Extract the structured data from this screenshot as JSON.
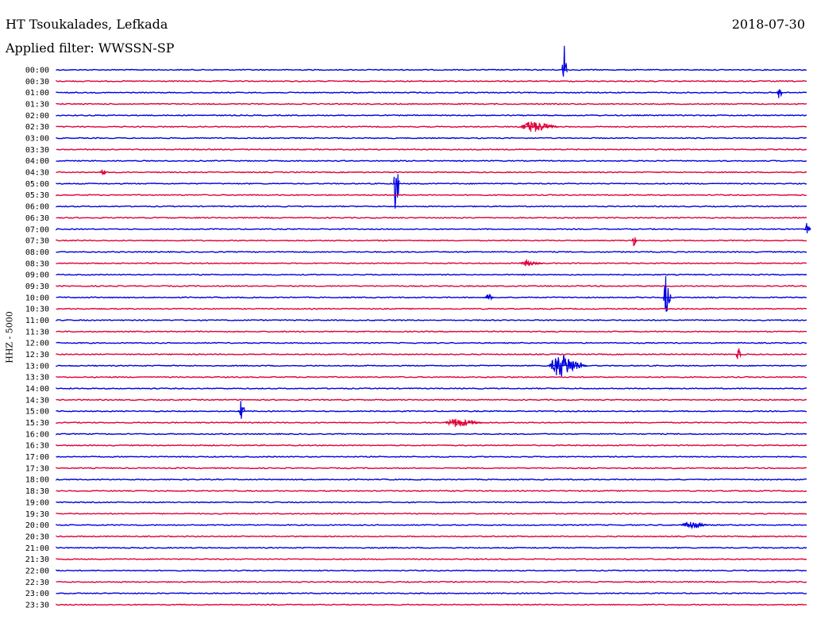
{
  "station": "HT Tsoukalades, Lefkada",
  "date": "2018-07-30",
  "filter_label": "Applied filter: WWSSN-SP",
  "channel_label": "HHZ - 5000",
  "colors": {
    "trace_a": "#0000e0",
    "trace_b": "#e0003a",
    "text": "#000000"
  },
  "times": [
    "00:00",
    "00:30",
    "01:00",
    "01:30",
    "02:00",
    "02:30",
    "03:00",
    "03:30",
    "04:00",
    "04:30",
    "05:00",
    "05:30",
    "06:00",
    "06:30",
    "07:00",
    "07:30",
    "08:00",
    "08:30",
    "09:00",
    "09:30",
    "10:00",
    "10:30",
    "11:00",
    "11:30",
    "12:00",
    "12:30",
    "13:00",
    "13:30",
    "14:00",
    "14:30",
    "15:00",
    "15:30",
    "16:00",
    "16:30",
    "17:00",
    "17:30",
    "18:00",
    "18:30",
    "19:00",
    "19:30",
    "20:00",
    "20:30",
    "21:00",
    "21:30",
    "22:00",
    "22:30",
    "23:00",
    "23:30"
  ],
  "events": [
    {
      "row": 0,
      "pos": 0.676,
      "amp": 46,
      "dur": 0.004
    },
    {
      "row": 2,
      "pos": 0.963,
      "amp": 8,
      "dur": 0.004
    },
    {
      "row": 5,
      "pos": 0.632,
      "amp": 8,
      "dur": 0.03
    },
    {
      "row": 9,
      "pos": 0.061,
      "amp": 6,
      "dur": 0.005
    },
    {
      "row": 10,
      "pos": 0.452,
      "amp": 42,
      "dur": 0.005
    },
    {
      "row": 14,
      "pos": 1.0,
      "amp": 8,
      "dur": 0.005
    },
    {
      "row": 15,
      "pos": 0.769,
      "amp": 9,
      "dur": 0.004
    },
    {
      "row": 17,
      "pos": 0.626,
      "amp": 4,
      "dur": 0.018
    },
    {
      "row": 20,
      "pos": 0.575,
      "amp": 6,
      "dur": 0.006
    },
    {
      "row": 20,
      "pos": 0.812,
      "amp": 30,
      "dur": 0.006
    },
    {
      "row": 25,
      "pos": 0.908,
      "amp": 12,
      "dur": 0.004
    },
    {
      "row": 26,
      "pos": 0.67,
      "amp": 16,
      "dur": 0.03
    },
    {
      "row": 30,
      "pos": 0.245,
      "amp": 15,
      "dur": 0.006
    },
    {
      "row": 31,
      "pos": 0.532,
      "amp": 6,
      "dur": 0.03
    },
    {
      "row": 40,
      "pos": 0.843,
      "amp": 5,
      "dur": 0.022
    }
  ]
}
